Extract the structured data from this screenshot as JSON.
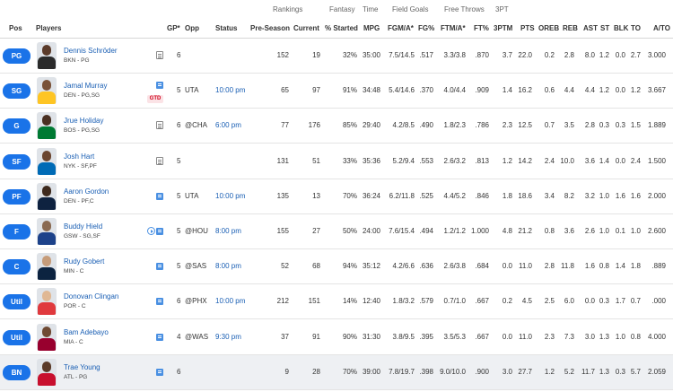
{
  "header_groups": {
    "rankings": "Rankings",
    "fantasy": "Fantasy",
    "time": "Time",
    "field_goals": "Field Goals",
    "free_throws": "Free Throws",
    "three_pt": "3PT"
  },
  "columns": {
    "pos": "Pos",
    "players": "Players",
    "gp": "GP*",
    "opp": "Opp",
    "status": "Status",
    "pre_season": "Pre-Season",
    "current": "Current",
    "pct_started": "% Started",
    "mpg": "MPG",
    "fgm_a": "FGM/A*",
    "fg_pct": "FG%",
    "ftm_a": "FTM/A*",
    "ft_pct": "FT%",
    "three_ptm": "3PTM",
    "pts": "PTS",
    "oreb": "OREB",
    "reb": "REB",
    "ast": "AST",
    "st": "ST",
    "blk": "BLK",
    "to": "TO",
    "a_to": "A/TO"
  },
  "rows": [
    {
      "pos": "PG",
      "name": "Dennis Schröder",
      "meta": "BKN - PG",
      "gp": "6",
      "opp": "",
      "status": "",
      "pre": "152",
      "cur": "19",
      "started": "32%",
      "mpg": "35:00",
      "fgma": "7.5/14.5",
      "fgp": ".517",
      "ftma": "3.3/3.8",
      "ftp": ".870",
      "tpm": "3.7",
      "pts": "22.0",
      "oreb": "0.2",
      "reb": "2.8",
      "ast": "8.0",
      "st": "1.2",
      "blk": "0.0",
      "to": "2.7",
      "ato": "3.000"
    },
    {
      "pos": "SG",
      "name": "Jamal Murray",
      "meta": "DEN - PG,SG",
      "gp": "5",
      "opp": "UTA",
      "status": "10:00 pm",
      "pre": "65",
      "cur": "97",
      "started": "91%",
      "mpg": "34:48",
      "fgma": "5.4/14.6",
      "fgp": ".370",
      "ftma": "4.0/4.4",
      "ftp": ".909",
      "tpm": "1.4",
      "pts": "16.2",
      "oreb": "0.6",
      "reb": "4.4",
      "ast": "4.4",
      "st": "1.2",
      "blk": "0.0",
      "to": "1.2",
      "ato": "3.667",
      "gtd": "GTD"
    },
    {
      "pos": "G",
      "name": "Jrue Holiday",
      "meta": "BOS - PG,SG",
      "gp": "6",
      "opp": "@CHA",
      "status": "6:00 pm",
      "pre": "77",
      "cur": "176",
      "started": "85%",
      "mpg": "29:40",
      "fgma": "4.2/8.5",
      "fgp": ".490",
      "ftma": "1.8/2.3",
      "ftp": ".786",
      "tpm": "2.3",
      "pts": "12.5",
      "oreb": "0.7",
      "reb": "3.5",
      "ast": "2.8",
      "st": "0.3",
      "blk": "0.3",
      "to": "1.5",
      "ato": "1.889"
    },
    {
      "pos": "SF",
      "name": "Josh Hart",
      "meta": "NYK - SF,PF",
      "gp": "5",
      "opp": "",
      "status": "",
      "pre": "131",
      "cur": "51",
      "started": "33%",
      "mpg": "35:36",
      "fgma": "5.2/9.4",
      "fgp": ".553",
      "ftma": "2.6/3.2",
      "ftp": ".813",
      "tpm": "1.2",
      "pts": "14.2",
      "oreb": "2.4",
      "reb": "10.0",
      "ast": "3.6",
      "st": "1.4",
      "blk": "0.0",
      "to": "2.4",
      "ato": "1.500"
    },
    {
      "pos": "PF",
      "name": "Aaron Gordon",
      "meta": "DEN - PF,C",
      "gp": "5",
      "opp": "UTA",
      "status": "10:00 pm",
      "pre": "135",
      "cur": "13",
      "started": "70%",
      "mpg": "36:24",
      "fgma": "6.2/11.8",
      "fgp": ".525",
      "ftma": "4.4/5.2",
      "ftp": ".846",
      "tpm": "1.8",
      "pts": "18.6",
      "oreb": "3.4",
      "reb": "8.2",
      "ast": "3.2",
      "st": "1.0",
      "blk": "1.6",
      "to": "1.6",
      "ato": "2.000"
    },
    {
      "pos": "F",
      "name": "Buddy Hield",
      "meta": "GSW - SG,SF",
      "gp": "5",
      "opp": "@HOU",
      "status": "8:00 pm",
      "pre": "155",
      "cur": "27",
      "started": "50%",
      "mpg": "24:00",
      "fgma": "7.6/15.4",
      "fgp": ".494",
      "ftma": "1.2/1.2",
      "ftp": "1.000",
      "tpm": "4.8",
      "pts": "21.2",
      "oreb": "0.8",
      "reb": "3.6",
      "ast": "2.6",
      "st": "1.0",
      "blk": "0.1",
      "to": "1.0",
      "ato": "2.600",
      "play": true
    },
    {
      "pos": "C",
      "name": "Rudy Gobert",
      "meta": "MIN - C",
      "gp": "5",
      "opp": "@SAS",
      "status": "8:00 pm",
      "pre": "52",
      "cur": "68",
      "started": "94%",
      "mpg": "35:12",
      "fgma": "4.2/6.6",
      "fgp": ".636",
      "ftma": "2.6/3.8",
      "ftp": ".684",
      "tpm": "0.0",
      "pts": "11.0",
      "oreb": "2.8",
      "reb": "11.8",
      "ast": "1.6",
      "st": "0.8",
      "blk": "1.4",
      "to": "1.8",
      "ato": ".889"
    },
    {
      "pos": "Util",
      "name": "Donovan Clingan",
      "meta": "POR - C",
      "gp": "6",
      "opp": "@PHX",
      "status": "10:00 pm",
      "pre": "212",
      "cur": "151",
      "started": "14%",
      "mpg": "12:40",
      "fgma": "1.8/3.2",
      "fgp": ".579",
      "ftma": "0.7/1.0",
      "ftp": ".667",
      "tpm": "0.2",
      "pts": "4.5",
      "oreb": "2.5",
      "reb": "6.0",
      "ast": "0.0",
      "st": "0.3",
      "blk": "1.7",
      "to": "0.7",
      "ato": ".000"
    },
    {
      "pos": "Util",
      "name": "Bam Adebayo",
      "meta": "MIA - C",
      "gp": "4",
      "opp": "@WAS",
      "status": "9:30 pm",
      "pre": "37",
      "cur": "91",
      "started": "90%",
      "mpg": "31:30",
      "fgma": "3.8/9.5",
      "fgp": ".395",
      "ftma": "3.5/5.3",
      "ftp": ".667",
      "tpm": "0.0",
      "pts": "11.0",
      "oreb": "2.3",
      "reb": "7.3",
      "ast": "3.0",
      "st": "1.3",
      "blk": "1.0",
      "to": "0.8",
      "ato": "4.000"
    },
    {
      "pos": "BN",
      "name": "Trae Young",
      "meta": "ATL - PG",
      "gp": "6",
      "opp": "",
      "status": "",
      "pre": "9",
      "cur": "28",
      "started": "70%",
      "mpg": "39:00",
      "fgma": "7.8/19.7",
      "fgp": ".398",
      "ftma": "9.0/10.0",
      "ftp": ".900",
      "tpm": "3.0",
      "pts": "27.7",
      "oreb": "1.2",
      "reb": "5.2",
      "ast": "11.7",
      "st": "1.3",
      "blk": "0.3",
      "to": "5.7",
      "ato": "2.059"
    }
  ],
  "colors": {
    "pill": "#1a73e8",
    "link": "#1a5fb4",
    "gtd": "#d0021b",
    "bench_bg": "#eef0f3"
  }
}
